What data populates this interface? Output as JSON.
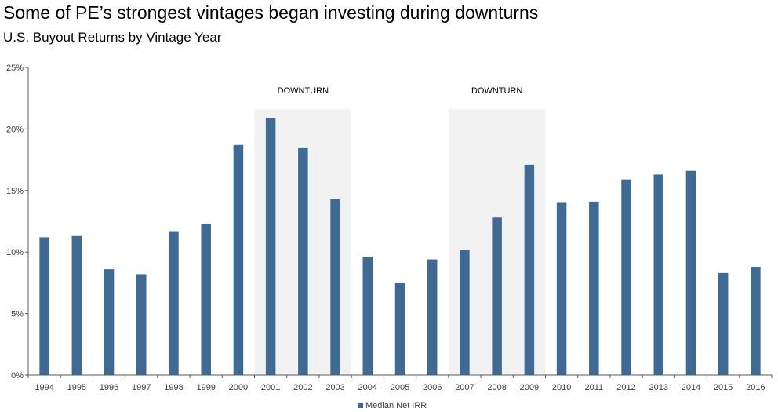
{
  "chart_data": {
    "type": "bar",
    "title": "Some of PE’s strongest vintages began investing during downturns",
    "subtitle": "U.S. Buyout Returns by Vintage Year",
    "categories": [
      "1994",
      "1995",
      "1996",
      "1997",
      "1998",
      "1999",
      "2000",
      "2001",
      "2002",
      "2003",
      "2004",
      "2005",
      "2006",
      "2007",
      "2008",
      "2009",
      "2010",
      "2011",
      "2012",
      "2013",
      "2014",
      "2015",
      "2016"
    ],
    "series": [
      {
        "name": "Median Net IRR",
        "color": "#3f6a94",
        "values": [
          11.2,
          11.3,
          8.6,
          8.2,
          11.7,
          12.3,
          18.7,
          20.9,
          18.5,
          14.3,
          9.6,
          7.5,
          9.4,
          10.2,
          12.8,
          17.1,
          14.0,
          14.1,
          15.9,
          16.3,
          16.6,
          8.3,
          8.8
        ]
      }
    ],
    "ylim": [
      0,
      25
    ],
    "yticks": [
      "0%",
      "5%",
      "10%",
      "15%",
      "20%",
      "25%"
    ],
    "ytick_values": [
      0,
      5,
      10,
      15,
      20,
      25
    ],
    "xlabel": "",
    "ylabel": "",
    "grid": false,
    "legend": "bottom-center",
    "annotations": [
      {
        "label": "DOWNTURN",
        "from": "2001",
        "to": "2003",
        "color": "#f2f2f2",
        "top_value": 21.6
      },
      {
        "label": "DOWNTURN",
        "from": "2007",
        "to": "2009",
        "color": "#f2f2f2",
        "top_value": 21.6
      }
    ]
  }
}
